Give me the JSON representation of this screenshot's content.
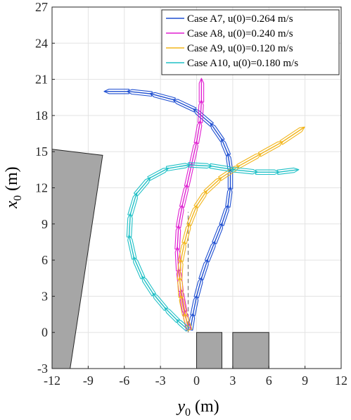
{
  "chart_data": {
    "type": "line",
    "xlabel": "y",
    "xlabel_sub": "0",
    "xlabel_unit": " (m)",
    "ylabel": "x",
    "ylabel_sub": "0",
    "ylabel_unit": " (m)",
    "xlim": [
      -12,
      12
    ],
    "ylim": [
      -3,
      27
    ],
    "xticks": [
      -12,
      -9,
      -6,
      -3,
      0,
      3,
      6,
      9,
      12
    ],
    "yticks": [
      -3,
      0,
      3,
      6,
      9,
      12,
      15,
      18,
      21,
      24,
      27
    ],
    "grid": true,
    "legend_position": "top-right",
    "series": [
      {
        "name": "Case A7,  u(0)=0.264 m/s",
        "color": "#1f4fd1",
        "points": [
          [
            -0.5,
            0.3
          ],
          [
            -0.3,
            1.5
          ],
          [
            0,
            3
          ],
          [
            0.4,
            4.5
          ],
          [
            0.9,
            6
          ],
          [
            1.5,
            7.5
          ],
          [
            2.1,
            9
          ],
          [
            2.6,
            10.5
          ],
          [
            2.8,
            12
          ],
          [
            2.8,
            13.5
          ],
          [
            2.6,
            14.8
          ],
          [
            2.1,
            16
          ],
          [
            1.2,
            17.3
          ],
          [
            -0.2,
            18.5
          ],
          [
            -1.9,
            19.3
          ],
          [
            -3.8,
            19.8
          ],
          [
            -5.7,
            20
          ],
          [
            -7.6,
            20
          ]
        ]
      },
      {
        "name": "Case A8,  u(0)=0.240 m/s",
        "color": "#e01fd1",
        "points": [
          [
            -0.7,
            0.3
          ],
          [
            -1.0,
            1.8
          ],
          [
            -1.3,
            3.5
          ],
          [
            -1.5,
            5.2
          ],
          [
            -1.6,
            7
          ],
          [
            -1.5,
            8.8
          ],
          [
            -1.2,
            10.5
          ],
          [
            -0.8,
            12.2
          ],
          [
            -0.4,
            14
          ],
          [
            0,
            15.8
          ],
          [
            0.3,
            17.5
          ],
          [
            0.4,
            19.2
          ],
          [
            0.4,
            21
          ]
        ]
      },
      {
        "name": "Case A9,  u(0)=0.120 m/s",
        "color": "#f2b51b",
        "points": [
          [
            -0.6,
            0.3
          ],
          [
            -1.0,
            1.5
          ],
          [
            -1.3,
            3
          ],
          [
            -1.4,
            4.5
          ],
          [
            -1.3,
            6
          ],
          [
            -1.0,
            7.5
          ],
          [
            -0.6,
            9
          ],
          [
            0,
            10.5
          ],
          [
            0.8,
            11.7
          ],
          [
            2,
            12.8
          ],
          [
            3.5,
            13.8
          ],
          [
            5.3,
            14.8
          ],
          [
            7.1,
            15.8
          ],
          [
            8.9,
            17
          ]
        ]
      },
      {
        "name": "Case A10,  u(0)=0.180 m/s",
        "color": "#1fc0c6",
        "points": [
          [
            -0.8,
            0.3
          ],
          [
            -1.6,
            1
          ],
          [
            -2.6,
            2
          ],
          [
            -3.6,
            3.2
          ],
          [
            -4.5,
            4.6
          ],
          [
            -5.2,
            6.2
          ],
          [
            -5.6,
            8
          ],
          [
            -5.5,
            9.8
          ],
          [
            -5,
            11.5
          ],
          [
            -3.9,
            12.8
          ],
          [
            -2.4,
            13.6
          ],
          [
            -0.6,
            13.9
          ],
          [
            1.2,
            13.8
          ],
          [
            3.1,
            13.5
          ],
          [
            5,
            13.3
          ],
          [
            6.8,
            13.3
          ],
          [
            8.4,
            13.5
          ]
        ]
      }
    ],
    "dashed_line": {
      "color": "#777777",
      "points": [
        [
          -0.7,
          0
        ],
        [
          -0.7,
          10
        ]
      ]
    },
    "obstacles": [
      {
        "color": "#a6a6a6",
        "polygon": [
          [
            -12,
            15.2
          ],
          [
            -7.8,
            14.7
          ],
          [
            -10.5,
            -3
          ],
          [
            -12,
            -3
          ]
        ]
      },
      {
        "color": "#a6a6a6",
        "polygon": [
          [
            0,
            0
          ],
          [
            2.1,
            0
          ],
          [
            2.1,
            -3
          ],
          [
            0,
            -3
          ]
        ]
      },
      {
        "color": "#a6a6a6",
        "polygon": [
          [
            3,
            0
          ],
          [
            6,
            0
          ],
          [
            6,
            -3
          ],
          [
            3,
            -3
          ]
        ]
      }
    ]
  }
}
